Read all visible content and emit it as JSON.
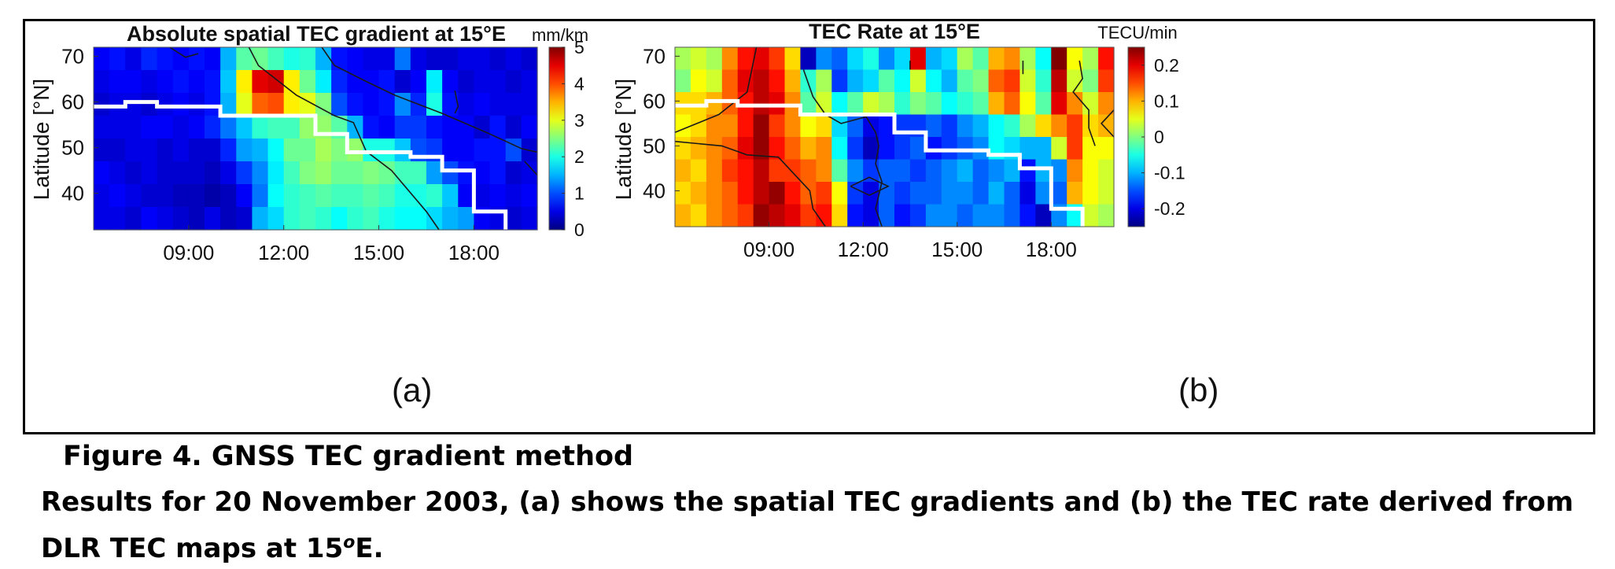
{
  "chart_data": [
    {
      "type": "heatmap",
      "title": "Absolute spatial TEC gradient at 15°E",
      "xlabel": "",
      "ylabel": "Latitude [°N]",
      "x_range_hours": [
        6.0,
        20.0
      ],
      "y_range": [
        32,
        72
      ],
      "xtick_values": [
        9,
        12,
        15,
        18
      ],
      "xtick_labels": [
        "09:00",
        "12:00",
        "15:00",
        "18:00"
      ],
      "ytick_values": [
        40,
        50,
        60,
        70
      ],
      "ytick_labels": [
        "40",
        "50",
        "60",
        "70"
      ],
      "colorbar": {
        "label": "mm/km",
        "range": [
          0,
          5
        ],
        "tick_values": [
          0,
          1,
          2,
          3,
          4,
          5
        ],
        "tick_labels": [
          "0",
          "1",
          "2",
          "3",
          "4",
          "5"
        ],
        "colormap": "jet"
      },
      "grid_rows_lat_top_to_bottom": 8,
      "grid_cols_time": 28,
      "values_top_to_bottom": [
        [
          0.6,
          0.7,
          0.5,
          0.8,
          0.7,
          0.6,
          0.7,
          0.6,
          1.5,
          2.3,
          2.4,
          2.2,
          2.0,
          2.1,
          1.5,
          0.7,
          0.6,
          0.5,
          0.5,
          1.2,
          0.5,
          0.4,
          0.4,
          0.5,
          0.5,
          0.4,
          0.5,
          0.4
        ],
        [
          0.5,
          0.6,
          0.6,
          0.5,
          0.6,
          0.7,
          0.6,
          0.7,
          1.6,
          3.2,
          4.5,
          4.6,
          3.2,
          2.4,
          1.8,
          0.8,
          0.6,
          0.6,
          0.7,
          0.4,
          0.6,
          1.8,
          0.6,
          0.4,
          0.5,
          0.5,
          0.4,
          0.5
        ],
        [
          0.4,
          0.5,
          0.5,
          0.4,
          0.5,
          0.6,
          0.5,
          0.7,
          1.5,
          3.0,
          3.9,
          4.0,
          3.2,
          3.0,
          2.5,
          1.0,
          0.7,
          0.6,
          0.7,
          1.3,
          0.8,
          2.0,
          0.7,
          0.5,
          0.6,
          0.5,
          0.5,
          0.5
        ],
        [
          0.5,
          0.5,
          0.5,
          0.6,
          0.6,
          0.5,
          0.6,
          0.8,
          1.2,
          1.6,
          2.1,
          2.2,
          2.2,
          2.6,
          2.6,
          2.3,
          1.5,
          0.7,
          0.6,
          0.9,
          0.9,
          0.7,
          0.6,
          0.6,
          0.4,
          0.7,
          0.4,
          0.6
        ],
        [
          0.4,
          0.4,
          0.5,
          0.5,
          0.4,
          0.5,
          0.4,
          0.4,
          0.8,
          1.4,
          1.5,
          1.9,
          2.4,
          2.4,
          2.7,
          2.5,
          2.6,
          2.0,
          2.0,
          1.6,
          1.0,
          0.9,
          0.6,
          0.6,
          0.7,
          0.7,
          1.0,
          0.4
        ],
        [
          0.6,
          0.5,
          0.4,
          0.5,
          0.4,
          0.4,
          0.4,
          0.3,
          0.5,
          0.9,
          1.3,
          1.8,
          2.2,
          2.5,
          2.6,
          2.4,
          2.4,
          2.5,
          2.4,
          2.2,
          2.2,
          1.4,
          1.0,
          0.7,
          0.6,
          0.7,
          0.4,
          0.5
        ],
        [
          0.5,
          0.6,
          0.5,
          0.4,
          0.4,
          0.3,
          0.3,
          0.2,
          0.3,
          0.6,
          1.2,
          1.9,
          2.1,
          2.2,
          2.3,
          2.2,
          2.2,
          2.3,
          2.2,
          2.0,
          2.0,
          2.1,
          1.6,
          0.6,
          0.5,
          0.6,
          0.5,
          0.6
        ],
        [
          0.5,
          0.5,
          0.4,
          0.6,
          0.5,
          0.4,
          0.3,
          0.5,
          0.3,
          0.4,
          1.5,
          1.7,
          2.1,
          2.2,
          2.1,
          1.9,
          2.1,
          2.2,
          2.0,
          1.9,
          1.9,
          1.7,
          1.5,
          1.4,
          0.6,
          0.5,
          0.4,
          0.5
        ]
      ],
      "white_line_lat": [
        [
          6.0,
          59
        ],
        [
          7.0,
          59
        ],
        [
          7.0,
          60
        ],
        [
          8.0,
          60
        ],
        [
          8.0,
          59
        ],
        [
          10.0,
          59
        ],
        [
          10.0,
          57
        ],
        [
          13.0,
          57
        ],
        [
          13.0,
          53
        ],
        [
          14.0,
          53
        ],
        [
          14.0,
          49
        ],
        [
          16.0,
          49
        ],
        [
          16.0,
          48
        ],
        [
          17.0,
          48
        ],
        [
          17.0,
          45
        ],
        [
          18.0,
          45
        ],
        [
          18.0,
          36
        ],
        [
          19.0,
          36
        ],
        [
          19.0,
          32
        ]
      ],
      "contour_lines": [
        [
          [
            8.4,
            72
          ],
          [
            8.9,
            69.8
          ],
          [
            9.3,
            70.6
          ]
        ],
        [
          [
            10.9,
            72
          ],
          [
            11.2,
            68
          ],
          [
            12.4,
            61.5
          ],
          [
            13.6,
            57
          ],
          [
            14.2,
            55.5
          ],
          [
            14.6,
            49.2
          ],
          [
            15.4,
            45
          ],
          [
            16.5,
            36
          ],
          [
            16.9,
            32
          ]
        ],
        [
          [
            13.2,
            72
          ],
          [
            13.6,
            68
          ],
          [
            14.6,
            64.5
          ],
          [
            15.5,
            61.5
          ],
          [
            17.0,
            57.5
          ],
          [
            18.5,
            53
          ],
          [
            19.5,
            49.8
          ],
          [
            20.0,
            49
          ]
        ],
        [
          [
            17.4,
            62.5
          ],
          [
            17.5,
            59
          ],
          [
            17.4,
            57.5
          ]
        ],
        [
          [
            19.6,
            47
          ],
          [
            20.0,
            44
          ]
        ]
      ]
    },
    {
      "type": "heatmap",
      "title": "TEC Rate at 15°E",
      "xlabel": "",
      "ylabel": "Latitude [°N]",
      "x_range_hours": [
        6.0,
        20.0
      ],
      "y_range": [
        32,
        72
      ],
      "xtick_values": [
        9,
        12,
        15,
        18
      ],
      "xtick_labels": [
        "09:00",
        "12:00",
        "15:00",
        "18:00"
      ],
      "ytick_values": [
        40,
        50,
        60,
        70
      ],
      "ytick_labels": [
        "40",
        "50",
        "60",
        "70"
      ],
      "colorbar": {
        "label": "TECU/min",
        "range": [
          -0.25,
          0.25
        ],
        "tick_values": [
          -0.2,
          -0.1,
          0,
          0.1,
          0.2
        ],
        "tick_labels": [
          "-0.2",
          "-0.1",
          "0",
          "0.1",
          "0.2"
        ],
        "colormap": "jet"
      },
      "grid_rows_lat_top_to_bottom": 8,
      "grid_cols_time": 28,
      "values_top_to_bottom": [
        [
          0.02,
          0.04,
          0.02,
          0.12,
          0.18,
          0.2,
          0.16,
          0.08,
          -0.22,
          -0.12,
          -0.14,
          -0.08,
          -0.05,
          -0.12,
          -0.08,
          0.2,
          -0.1,
          -0.08,
          0.02,
          -0.02,
          0.1,
          0.12,
          0.02,
          -0.06,
          0.25,
          0.06,
          0.02,
          0.18
        ],
        [
          0.0,
          0.06,
          0.04,
          0.14,
          0.2,
          0.22,
          0.18,
          0.1,
          -0.04,
          0.02,
          -0.16,
          -0.1,
          -0.08,
          -0.02,
          -0.06,
          0.04,
          -0.06,
          -0.1,
          -0.02,
          0.0,
          0.14,
          0.16,
          0.04,
          -0.04,
          0.22,
          0.04,
          0.0,
          0.16
        ],
        [
          0.08,
          0.08,
          0.1,
          0.14,
          0.18,
          0.22,
          0.2,
          0.12,
          -0.02,
          0.04,
          -0.06,
          -0.02,
          0.04,
          0.02,
          -0.04,
          0.0,
          -0.02,
          -0.06,
          -0.04,
          -0.02,
          0.1,
          0.14,
          0.06,
          -0.02,
          0.2,
          0.12,
          0.04,
          0.12
        ],
        [
          0.06,
          0.08,
          0.12,
          0.12,
          0.18,
          0.24,
          0.16,
          0.12,
          0.06,
          0.08,
          -0.08,
          -0.14,
          -0.2,
          -0.18,
          -0.16,
          -0.16,
          -0.14,
          -0.16,
          -0.12,
          -0.1,
          -0.06,
          -0.04,
          0.02,
          0.08,
          0.12,
          0.16,
          0.08,
          0.1
        ],
        [
          0.08,
          0.1,
          0.12,
          0.14,
          0.2,
          0.24,
          0.18,
          0.14,
          0.1,
          0.12,
          -0.06,
          -0.16,
          -0.22,
          -0.18,
          -0.16,
          -0.14,
          -0.18,
          -0.16,
          -0.14,
          -0.12,
          -0.06,
          -0.08,
          -0.1,
          -0.1,
          0.04,
          0.16,
          0.06,
          0.06
        ],
        [
          0.1,
          0.08,
          0.12,
          0.16,
          0.18,
          0.22,
          0.16,
          0.16,
          0.14,
          0.12,
          -0.02,
          -0.12,
          -0.16,
          -0.14,
          -0.14,
          -0.16,
          -0.14,
          -0.12,
          -0.1,
          -0.14,
          -0.12,
          -0.1,
          -0.18,
          -0.1,
          -0.12,
          0.12,
          0.06,
          0.04
        ],
        [
          0.08,
          0.1,
          0.12,
          0.14,
          0.18,
          0.22,
          0.24,
          0.18,
          0.14,
          0.16,
          0.06,
          -0.16,
          -0.2,
          -0.14,
          -0.16,
          -0.14,
          -0.14,
          -0.12,
          -0.12,
          -0.14,
          -0.1,
          -0.14,
          -0.2,
          -0.12,
          -0.14,
          0.1,
          0.06,
          0.04
        ],
        [
          0.1,
          0.08,
          0.12,
          0.14,
          0.16,
          0.24,
          0.22,
          0.2,
          0.16,
          0.18,
          0.08,
          -0.18,
          -0.2,
          -0.14,
          -0.18,
          -0.16,
          -0.12,
          -0.12,
          -0.14,
          -0.12,
          -0.12,
          -0.14,
          -0.18,
          -0.22,
          -0.12,
          -0.06,
          0.04,
          0.02
        ]
      ],
      "white_line_lat": [
        [
          6.0,
          59
        ],
        [
          7.0,
          59
        ],
        [
          7.0,
          60
        ],
        [
          8.0,
          60
        ],
        [
          8.0,
          59
        ],
        [
          10.0,
          59
        ],
        [
          10.0,
          57
        ],
        [
          13.0,
          57
        ],
        [
          13.0,
          53
        ],
        [
          14.0,
          53
        ],
        [
          14.0,
          49
        ],
        [
          16.0,
          49
        ],
        [
          16.0,
          48
        ],
        [
          17.0,
          48
        ],
        [
          17.0,
          45
        ],
        [
          18.0,
          45
        ],
        [
          18.0,
          36
        ],
        [
          19.0,
          36
        ],
        [
          19.0,
          32
        ]
      ],
      "contour_lines": [
        [
          [
            8.6,
            72
          ],
          [
            8.3,
            62
          ],
          [
            7.4,
            57
          ],
          [
            6.7,
            55
          ],
          [
            6.0,
            53
          ]
        ],
        [
          [
            6.0,
            51
          ],
          [
            7.5,
            50
          ],
          [
            8.3,
            48
          ],
          [
            9.3,
            47.5
          ],
          [
            9.9,
            43
          ],
          [
            10.3,
            40
          ],
          [
            10.4,
            36
          ],
          [
            10.8,
            32
          ]
        ],
        [
          [
            10.1,
            67
          ],
          [
            10.4,
            61
          ],
          [
            10.8,
            57
          ],
          [
            11.3,
            55
          ],
          [
            12.1,
            56.5
          ],
          [
            12.4,
            53
          ],
          [
            12.5,
            50
          ],
          [
            12.4,
            46
          ],
          [
            12.6,
            42
          ],
          [
            12.4,
            36
          ],
          [
            12.6,
            32
          ]
        ],
        [
          [
            11.6,
            41
          ],
          [
            12.2,
            43
          ],
          [
            12.8,
            41
          ],
          [
            12.2,
            39
          ],
          [
            11.6,
            41
          ]
        ],
        [
          [
            18.9,
            69
          ],
          [
            19.0,
            65
          ],
          [
            18.7,
            62
          ],
          [
            19.2,
            58
          ],
          [
            19.2,
            54
          ],
          [
            19.4,
            50
          ]
        ],
        [
          [
            17.1,
            69
          ],
          [
            17.1,
            66
          ]
        ],
        [
          [
            20.0,
            58
          ],
          [
            19.6,
            55
          ],
          [
            20.0,
            52
          ]
        ],
        [
          [
            13.5,
            69
          ],
          [
            13.5,
            67
          ]
        ]
      ]
    }
  ],
  "panels": {
    "a": {
      "label": "(a)"
    },
    "b": {
      "label": "(b)"
    }
  },
  "caption": {
    "title": "Figure 4. GNSS TEC gradient method",
    "body": "Results for 20 November 2003, (a) shows the spatial TEC gradients and (b) the TEC rate derived from DLR TEC maps at 15",
    "body_sup": "o",
    "body_end": "E."
  },
  "colors": {
    "white_line": "#ffffff",
    "contour": "#1a1a1a",
    "frame": "#000000"
  }
}
